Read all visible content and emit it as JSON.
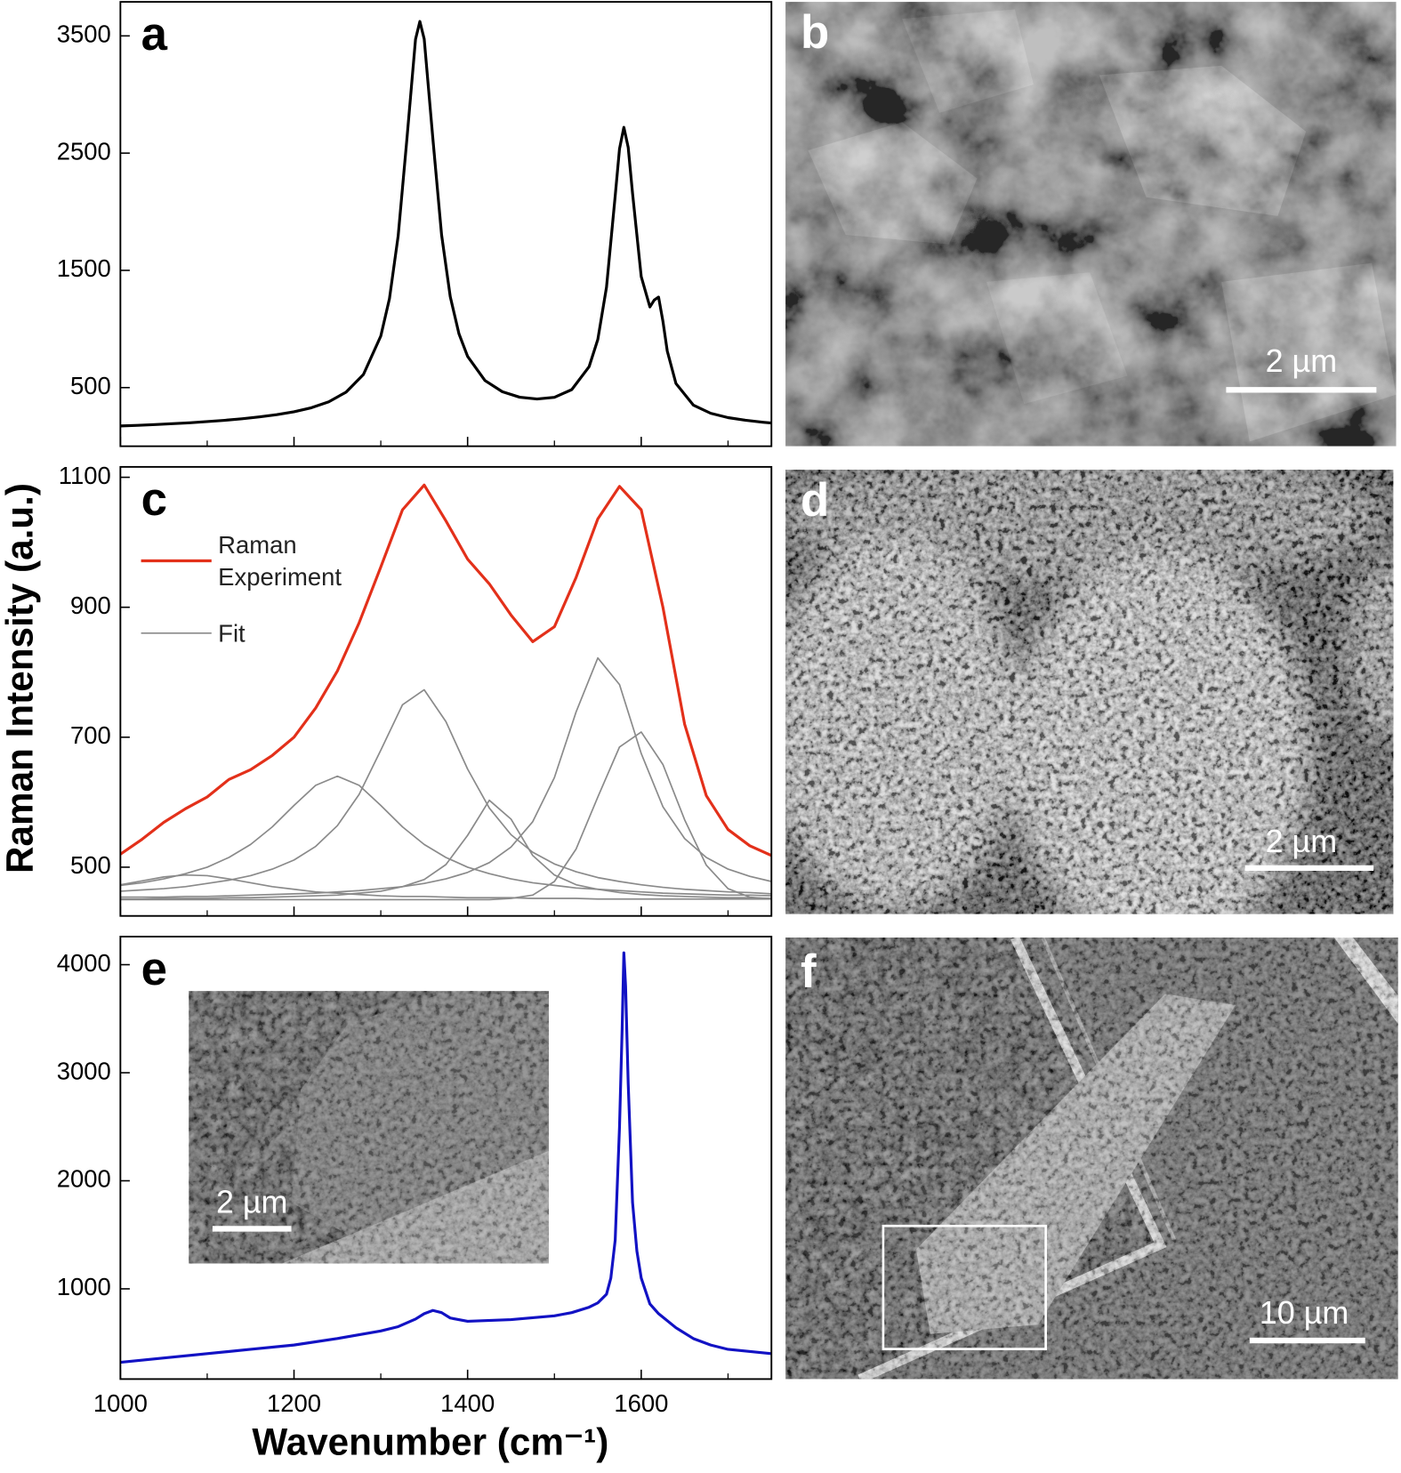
{
  "ylabel": "Raman Intensity (a.u.)",
  "xlabel": "Wavenumber (cm⁻¹)",
  "chart_data": [
    {
      "type": "line",
      "label": "a",
      "xlim": [
        1000,
        1750
      ],
      "ylim": [
        0,
        3790
      ],
      "yticks": [
        500,
        1500,
        2500,
        3500
      ],
      "xticks": [
        1000,
        1200,
        1400,
        1600
      ],
      "xminorticks": [
        1100,
        1300,
        1500,
        1700
      ],
      "xticklabels": false,
      "x": [
        1000,
        1020,
        1040,
        1060,
        1080,
        1100,
        1120,
        1140,
        1160,
        1180,
        1200,
        1220,
        1240,
        1260,
        1280,
        1300,
        1310,
        1320,
        1330,
        1340,
        1345,
        1350,
        1360,
        1370,
        1380,
        1390,
        1400,
        1420,
        1440,
        1460,
        1480,
        1500,
        1520,
        1540,
        1550,
        1560,
        1570,
        1575,
        1580,
        1585,
        1590,
        1600,
        1610,
        1615,
        1620,
        1625,
        1630,
        1640,
        1660,
        1680,
        1700,
        1720,
        1740,
        1750
      ],
      "series": [
        {
          "color": "#000000",
          "values": [
            173,
            178,
            185,
            192,
            200,
            210,
            221,
            234,
            250,
            269,
            294,
            328,
            379,
            461,
            612,
            940,
            1260,
            1794,
            2615,
            3471,
            3623,
            3473,
            2621,
            1804,
            1276,
            960,
            766,
            560,
            465,
            418,
            403,
            417,
            483,
            679,
            911,
            1356,
            2133,
            2537,
            2720,
            2549,
            2158,
            1447,
            1188,
            1247,
            1272,
            1066,
            812,
            535,
            351,
            281,
            244,
            222,
            205,
            198
          ]
        }
      ]
    },
    {
      "type": "line",
      "label": "c",
      "xlim": [
        1000,
        1750
      ],
      "ylim": [
        425,
        1116
      ],
      "yticks": [
        500,
        700,
        900,
        1100
      ],
      "xticks": [
        1000,
        1200,
        1400,
        1600
      ],
      "xminorticks": [
        1100,
        1300,
        1500,
        1700
      ],
      "xticklabels": false,
      "legend": "upper left",
      "x": [
        1000,
        1025,
        1050,
        1075,
        1100,
        1125,
        1150,
        1175,
        1200,
        1225,
        1250,
        1275,
        1300,
        1325,
        1350,
        1375,
        1400,
        1425,
        1450,
        1475,
        1500,
        1525,
        1550,
        1575,
        1600,
        1625,
        1650,
        1675,
        1700,
        1725,
        1750
      ],
      "series": [
        {
          "name": "Raman Experiment",
          "color": "#e3301a",
          "values": [
            520,
            543,
            569,
            590,
            608,
            635,
            650,
            672,
            700,
            745,
            802,
            876,
            962,
            1050,
            1088,
            1033,
            974,
            936,
            888,
            847,
            870,
            946,
            1036,
            1086,
            1050,
            900,
            720,
            610,
            558,
            533,
            518
          ]
        },
        {
          "name": "Fit",
          "color": "#8a8a8a",
          "values": [
            473,
            479,
            485,
            488,
            487,
            482,
            476,
            470,
            466,
            462,
            460,
            458,
            456,
            455,
            455,
            454,
            453,
            453,
            453,
            452,
            452,
            452,
            451,
            451,
            451,
            451,
            451,
            451,
            451,
            451,
            451
          ]
        },
        {
          "color": "#8a8a8a",
          "values": [
            472,
            476,
            482,
            490,
            500,
            515,
            535,
            562,
            595,
            626,
            640,
            626,
            595,
            562,
            535,
            515,
            500,
            490,
            482,
            476,
            472,
            468,
            466,
            464,
            462,
            460,
            459,
            458,
            457,
            457,
            456
          ]
        },
        {
          "color": "#8a8a8a",
          "values": [
            463,
            465,
            467,
            470,
            475,
            480,
            487,
            497,
            511,
            532,
            564,
            612,
            680,
            750,
            773,
            724,
            651,
            591,
            550,
            523,
            505,
            493,
            484,
            478,
            473,
            469,
            466,
            464,
            462,
            461,
            459
          ]
        },
        {
          "color": "#8a8a8a",
          "values": [
            451,
            451,
            452,
            452,
            452,
            453,
            453,
            454,
            455,
            456,
            457,
            460,
            463,
            470,
            481,
            504,
            549,
            603,
            574,
            518,
            488,
            473,
            466,
            461,
            458,
            456,
            455,
            454,
            453,
            453,
            452
          ]
        },
        {
          "color": "#8a8a8a",
          "values": [
            454,
            454,
            454,
            455,
            455,
            456,
            457,
            458,
            459,
            460,
            462,
            464,
            467,
            470,
            475,
            482,
            492,
            507,
            531,
            570,
            638,
            739,
            822,
            781,
            675,
            593,
            544,
            515,
            497,
            486,
            478
          ]
        },
        {
          "color": "#8a8a8a",
          "values": [
            450,
            450,
            450,
            450,
            450,
            450,
            450,
            450,
            450,
            450,
            450,
            450,
            450,
            450,
            450,
            450,
            450,
            450,
            452,
            457,
            478,
            528,
            608,
            685,
            708,
            658,
            573,
            503,
            467,
            454,
            451
          ]
        }
      ]
    },
    {
      "type": "line",
      "label": "e",
      "xlim": [
        1000,
        1750
      ],
      "ylim": [
        165,
        4260
      ],
      "yticks": [
        1000,
        2000,
        3000,
        4000
      ],
      "xticks": [
        1000,
        1200,
        1400,
        1600
      ],
      "xminorticks": [
        1100,
        1300,
        1500,
        1700
      ],
      "xticklabels": true,
      "inset_scale_bar": "2 µm",
      "x": [
        1000,
        1050,
        1100,
        1150,
        1200,
        1250,
        1300,
        1320,
        1340,
        1350,
        1360,
        1370,
        1380,
        1400,
        1450,
        1500,
        1520,
        1540,
        1550,
        1560,
        1565,
        1570,
        1575,
        1578,
        1580,
        1582,
        1585,
        1590,
        1595,
        1600,
        1610,
        1620,
        1640,
        1660,
        1680,
        1700,
        1750
      ],
      "series": [
        {
          "color": "#1212c4",
          "values": [
            320,
            360,
            400,
            440,
            480,
            540,
            610,
            650,
            720,
            770,
            800,
            780,
            730,
            700,
            715,
            750,
            780,
            830,
            870,
            950,
            1100,
            1450,
            2500,
            3400,
            4110,
            3800,
            2900,
            1800,
            1350,
            1100,
            860,
            770,
            640,
            540,
            480,
            440,
            400
          ]
        }
      ]
    }
  ],
  "images": [
    {
      "label": "b",
      "scale_bar": "2 µm"
    },
    {
      "label": "d",
      "scale_bar": "2 µm"
    },
    {
      "label": "f",
      "scale_bar": "10 µm"
    }
  ]
}
